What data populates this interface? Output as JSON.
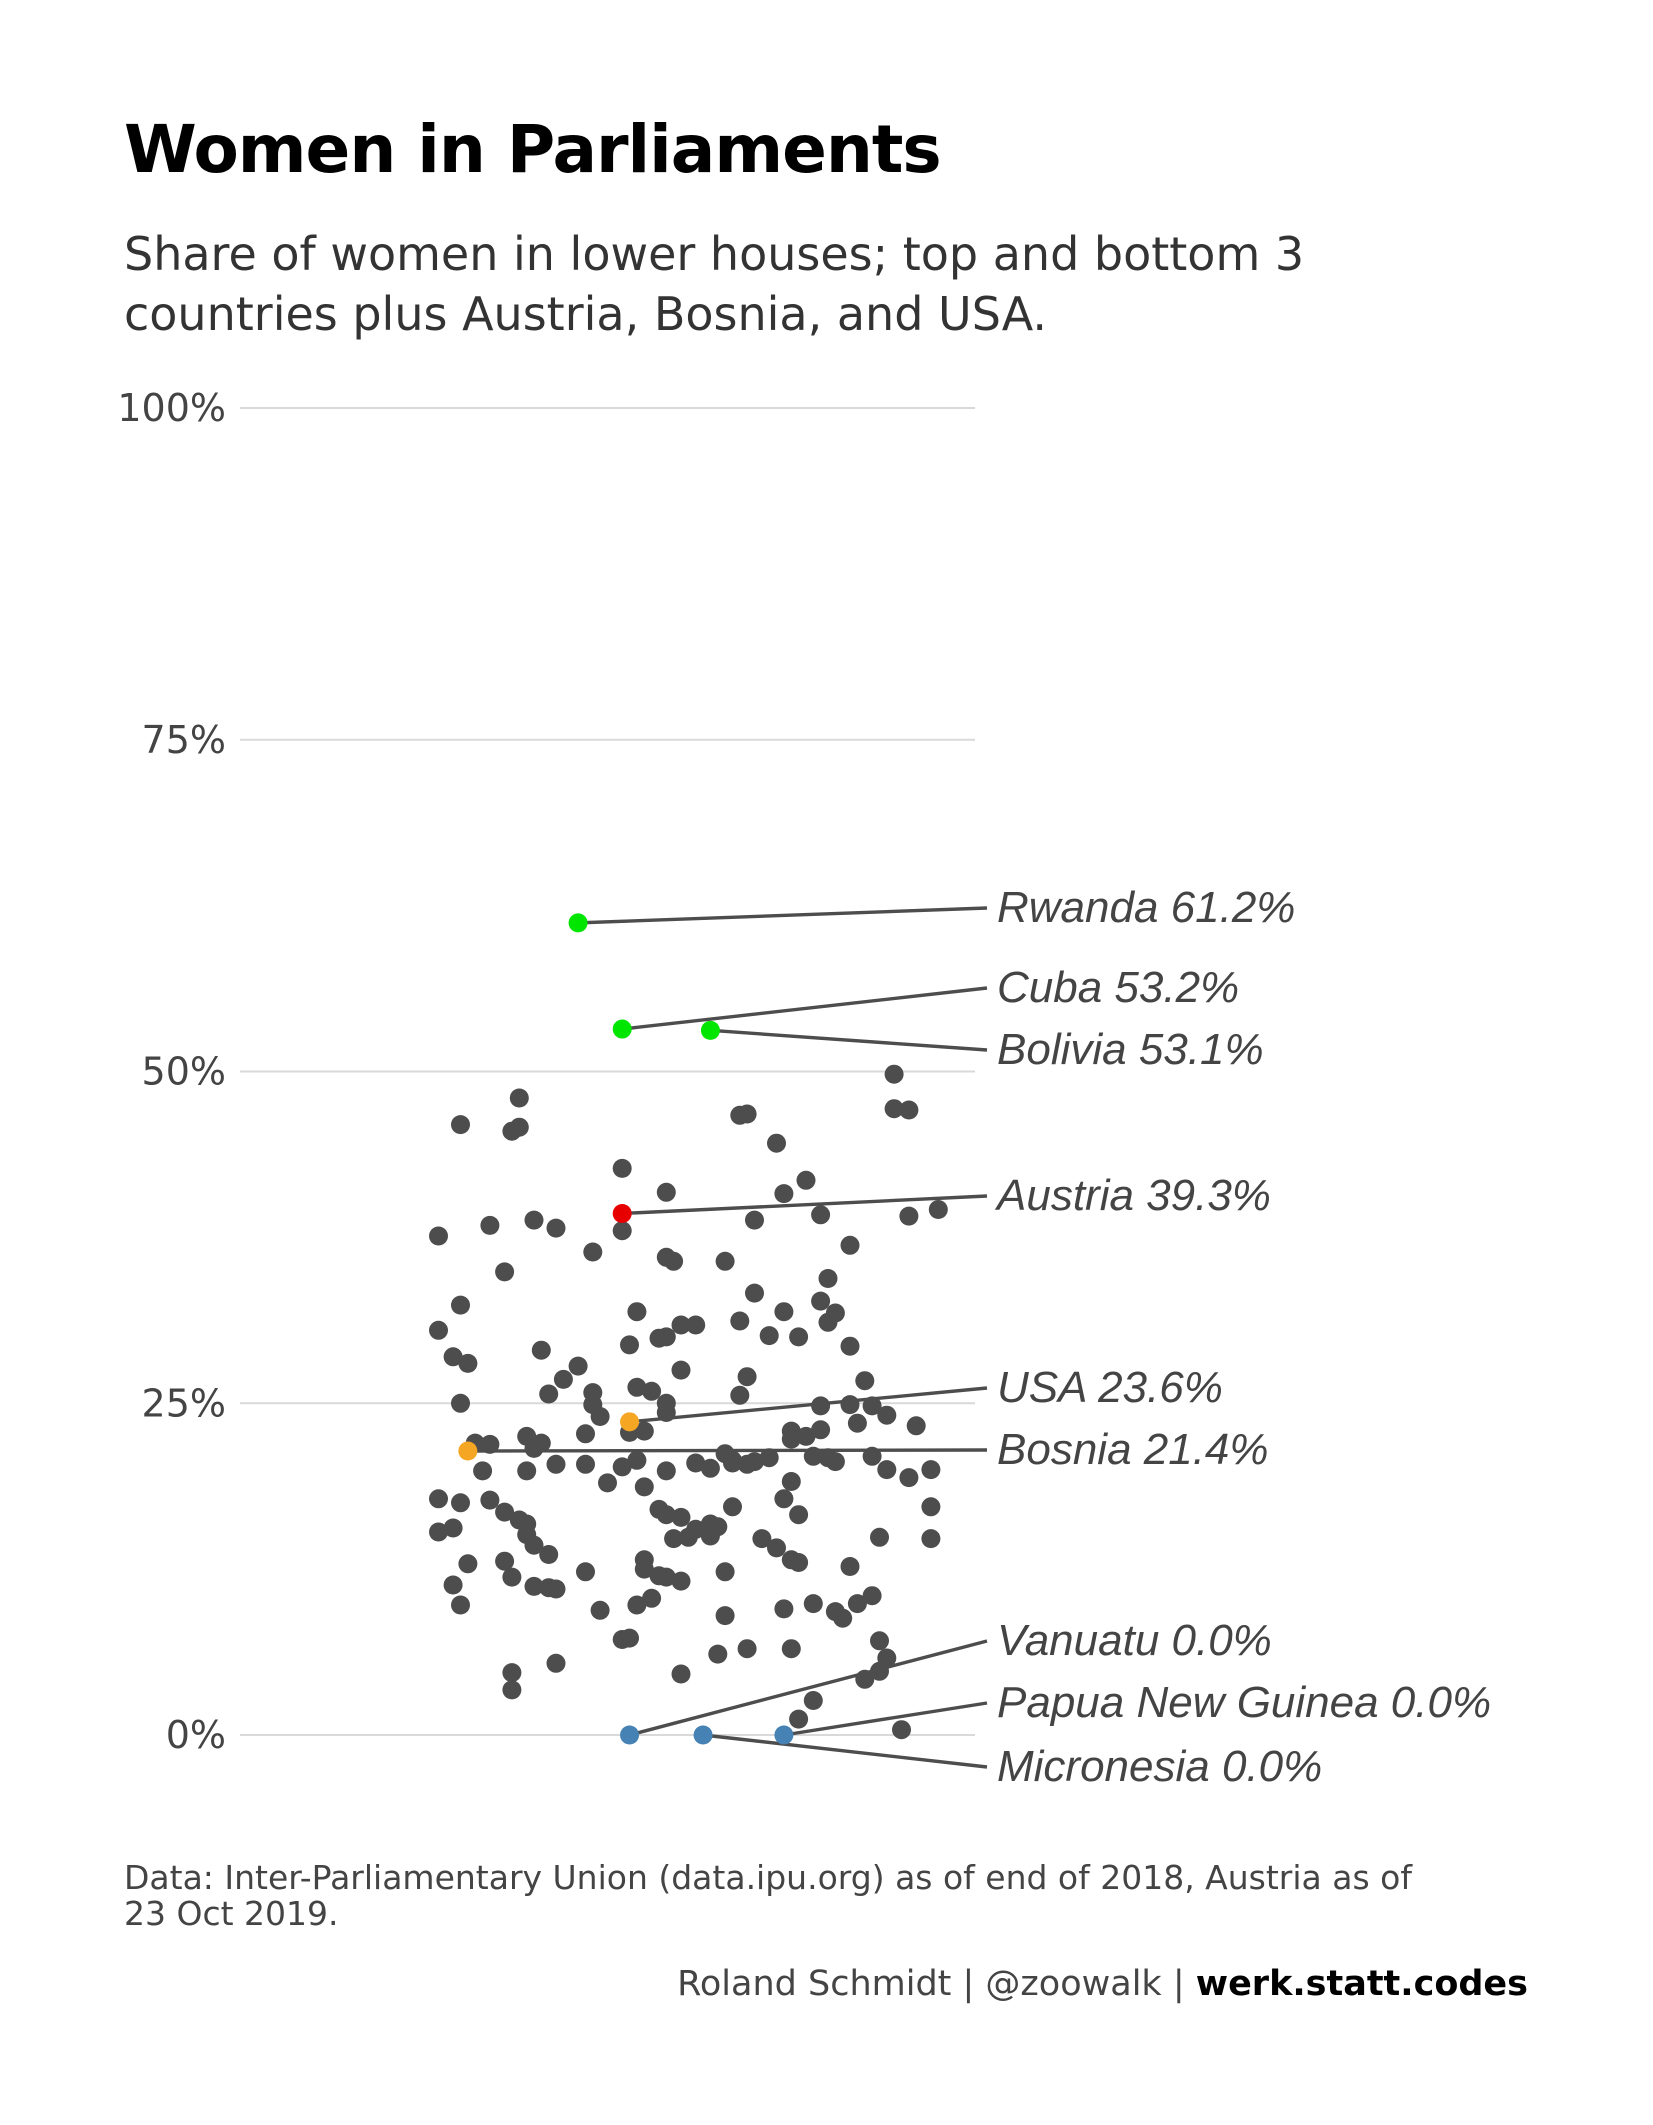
{
  "chart_data": {
    "type": "scatter",
    "title": "Women in Parliaments",
    "subtitle_lines": [
      "Share of women in lower houses; top and bottom 3",
      "countries plus Austria, Bosnia, and USA."
    ],
    "ylim": [
      0,
      100
    ],
    "y_ticks": [
      0,
      25,
      50,
      75,
      100
    ],
    "y_tick_labels": [
      "0%",
      "25%",
      "50%",
      "75%",
      "100%"
    ],
    "grid": true,
    "colors": {
      "default": "#4d4d4d",
      "top": "#00e600",
      "bottom": "#4682b4",
      "austria": "#e60000",
      "other_highlight": "#f5a623"
    },
    "highlighted": [
      {
        "label": "Rwanda 61.2%",
        "x": 0.46,
        "y": 61.2,
        "group": "top"
      },
      {
        "label": "Cuba 53.2%",
        "x": 0.52,
        "y": 53.2,
        "group": "top"
      },
      {
        "label": "Bolivia  53.1%",
        "x": 0.64,
        "y": 53.1,
        "group": "top"
      },
      {
        "label": "Austria 39.3%",
        "x": 0.52,
        "y": 39.3,
        "group": "austria"
      },
      {
        "label": "USA 23.6%",
        "x": 0.53,
        "y": 23.6,
        "group": "other_highlight"
      },
      {
        "label": "Bosnia 21.4%",
        "x": 0.31,
        "y": 21.4,
        "group": "other_highlight"
      },
      {
        "label": "Vanuatu 0.0%",
        "x": 0.53,
        "y": 0.0,
        "group": "bottom"
      },
      {
        "label": "Papua New Guinea 0.0%",
        "x": 0.74,
        "y": 0.0,
        "group": "bottom"
      },
      {
        "label": "Micronesia  0.0%",
        "x": 0.63,
        "y": 0.0,
        "group": "bottom"
      }
    ],
    "points": [
      [
        0.38,
        48
      ],
      [
        0.3,
        46
      ],
      [
        0.37,
        45.5
      ],
      [
        0.38,
        45.8
      ],
      [
        0.68,
        46.7
      ],
      [
        0.69,
        46.8
      ],
      [
        0.73,
        44.6
      ],
      [
        0.89,
        49.8
      ],
      [
        0.89,
        47.2
      ],
      [
        0.91,
        47.1
      ],
      [
        0.52,
        42.7
      ],
      [
        0.58,
        40.9
      ],
      [
        0.74,
        40.8
      ],
      [
        0.77,
        41.8
      ],
      [
        0.27,
        37.6
      ],
      [
        0.34,
        38.4
      ],
      [
        0.4,
        38.8
      ],
      [
        0.43,
        38.2
      ],
      [
        0.52,
        38.0
      ],
      [
        0.7,
        38.8
      ],
      [
        0.79,
        39.2
      ],
      [
        0.91,
        39.1
      ],
      [
        0.95,
        39.6
      ],
      [
        0.48,
        36.4
      ],
      [
        0.58,
        36.0
      ],
      [
        0.59,
        35.7
      ],
      [
        0.66,
        35.7
      ],
      [
        0.83,
        36.9
      ],
      [
        0.36,
        34.9
      ],
      [
        0.8,
        34.4
      ],
      [
        0.7,
        33.3
      ],
      [
        0.79,
        32.7
      ],
      [
        0.3,
        32.4
      ],
      [
        0.54,
        31.9
      ],
      [
        0.74,
        31.9
      ],
      [
        0.81,
        31.8
      ],
      [
        0.27,
        30.5
      ],
      [
        0.6,
        30.9
      ],
      [
        0.62,
        30.9
      ],
      [
        0.68,
        31.2
      ],
      [
        0.72,
        30.1
      ],
      [
        0.76,
        30.0
      ],
      [
        0.8,
        31.1
      ],
      [
        0.41,
        29.0
      ],
      [
        0.53,
        29.4
      ],
      [
        0.57,
        29.9
      ],
      [
        0.58,
        30.0
      ],
      [
        0.83,
        29.3
      ],
      [
        0.29,
        28.5
      ],
      [
        0.31,
        28.0
      ],
      [
        0.46,
        27.8
      ],
      [
        0.44,
        26.8
      ],
      [
        0.6,
        27.5
      ],
      [
        0.69,
        27.0
      ],
      [
        0.85,
        26.7
      ],
      [
        0.42,
        25.7
      ],
      [
        0.48,
        25.8
      ],
      [
        0.54,
        26.2
      ],
      [
        0.56,
        25.9
      ],
      [
        0.68,
        25.6
      ],
      [
        0.3,
        25.0
      ],
      [
        0.48,
        24.9
      ],
      [
        0.49,
        24.0
      ],
      [
        0.58,
        25.0
      ],
      [
        0.58,
        24.3
      ],
      [
        0.79,
        24.8
      ],
      [
        0.83,
        24.9
      ],
      [
        0.86,
        24.8
      ],
      [
        0.88,
        24.1
      ],
      [
        0.84,
        23.5
      ],
      [
        0.92,
        23.3
      ],
      [
        0.79,
        23.0
      ],
      [
        0.77,
        22.5
      ],
      [
        0.75,
        22.9
      ],
      [
        0.75,
        22.3
      ],
      [
        0.55,
        22.9
      ],
      [
        0.53,
        22.8
      ],
      [
        0.47,
        22.7
      ],
      [
        0.39,
        22.5
      ],
      [
        0.41,
        22.0
      ],
      [
        0.32,
        22.0
      ],
      [
        0.34,
        21.9
      ],
      [
        0.4,
        21.6
      ],
      [
        0.66,
        21.2
      ],
      [
        0.67,
        20.7
      ],
      [
        0.62,
        20.5
      ],
      [
        0.64,
        20.1
      ],
      [
        0.67,
        20.5
      ],
      [
        0.69,
        20.4
      ],
      [
        0.7,
        20.6
      ],
      [
        0.72,
        20.9
      ],
      [
        0.78,
        21.0
      ],
      [
        0.8,
        20.9
      ],
      [
        0.81,
        20.6
      ],
      [
        0.86,
        21.0
      ],
      [
        0.88,
        20.0
      ],
      [
        0.91,
        19.4
      ],
      [
        0.94,
        20.0
      ],
      [
        0.43,
        20.4
      ],
      [
        0.47,
        20.4
      ],
      [
        0.52,
        20.2
      ],
      [
        0.54,
        20.7
      ],
      [
        0.58,
        19.9
      ],
      [
        0.33,
        19.9
      ],
      [
        0.39,
        19.9
      ],
      [
        0.5,
        19.0
      ],
      [
        0.55,
        18.7
      ],
      [
        0.75,
        19.1
      ],
      [
        0.27,
        17.8
      ],
      [
        0.3,
        17.5
      ],
      [
        0.34,
        17.7
      ],
      [
        0.36,
        16.8
      ],
      [
        0.38,
        16.2
      ],
      [
        0.39,
        15.9
      ],
      [
        0.57,
        17.0
      ],
      [
        0.58,
        16.6
      ],
      [
        0.6,
        16.4
      ],
      [
        0.64,
        15.9
      ],
      [
        0.67,
        17.2
      ],
      [
        0.74,
        17.8
      ],
      [
        0.76,
        16.6
      ],
      [
        0.94,
        17.2
      ],
      [
        0.27,
        15.3
      ],
      [
        0.29,
        15.6
      ],
      [
        0.39,
        15.1
      ],
      [
        0.4,
        14.3
      ],
      [
        0.42,
        13.6
      ],
      [
        0.55,
        13.2
      ],
      [
        0.55,
        12.5
      ],
      [
        0.57,
        12.0
      ],
      [
        0.59,
        14.8
      ],
      [
        0.61,
        14.9
      ],
      [
        0.62,
        15.5
      ],
      [
        0.65,
        15.7
      ],
      [
        0.64,
        15.0
      ],
      [
        0.66,
        12.3
      ],
      [
        0.71,
        14.8
      ],
      [
        0.73,
        14.1
      ],
      [
        0.75,
        13.2
      ],
      [
        0.76,
        13.0
      ],
      [
        0.83,
        12.7
      ],
      [
        0.87,
        14.9
      ],
      [
        0.94,
        14.8
      ],
      [
        0.31,
        12.9
      ],
      [
        0.36,
        13.1
      ],
      [
        0.37,
        11.9
      ],
      [
        0.4,
        11.2
      ],
      [
        0.42,
        11.1
      ],
      [
        0.43,
        11.0
      ],
      [
        0.47,
        12.3
      ],
      [
        0.56,
        10.3
      ],
      [
        0.58,
        11.9
      ],
      [
        0.6,
        11.6
      ],
      [
        0.29,
        11.3
      ],
      [
        0.3,
        9.8
      ],
      [
        0.49,
        9.4
      ],
      [
        0.54,
        9.8
      ],
      [
        0.66,
        9.0
      ],
      [
        0.74,
        9.5
      ],
      [
        0.78,
        9.9
      ],
      [
        0.81,
        9.3
      ],
      [
        0.82,
        8.8
      ],
      [
        0.84,
        9.9
      ],
      [
        0.86,
        10.5
      ],
      [
        0.52,
        7.2
      ],
      [
        0.53,
        7.3
      ],
      [
        0.65,
        6.1
      ],
      [
        0.69,
        6.5
      ],
      [
        0.75,
        6.5
      ],
      [
        0.87,
        7.1
      ],
      [
        0.88,
        5.8
      ],
      [
        0.37,
        4.7
      ],
      [
        0.37,
        3.4
      ],
      [
        0.43,
        5.4
      ],
      [
        0.6,
        4.6
      ],
      [
        0.85,
        4.2
      ],
      [
        0.87,
        4.8
      ],
      [
        0.78,
        2.6
      ],
      [
        0.76,
        1.2
      ],
      [
        0.9,
        0.4
      ]
    ]
  },
  "caption_lines": [
    "Data: Inter-Parliamentary Union (data.ipu.org) as of end of 2018, Austria as of",
    "23 Oct 2019."
  ],
  "credit": {
    "plain": "Roland Schmidt | @zoowalk | ",
    "bold": "werk.statt.codes"
  }
}
